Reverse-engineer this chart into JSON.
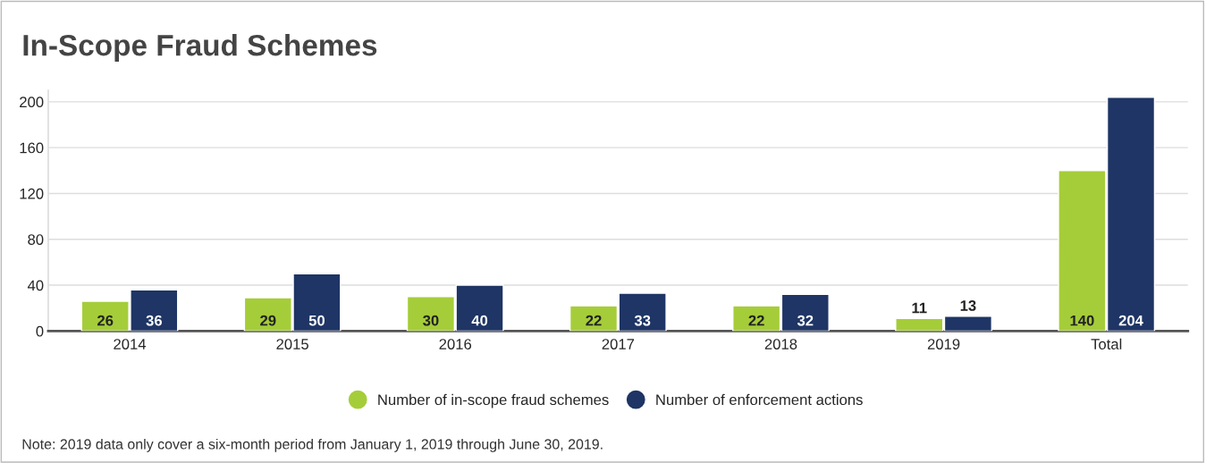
{
  "chart_data": {
    "type": "bar",
    "title": "In-Scope Fraud Schemes",
    "categories": [
      "2014",
      "2015",
      "2016",
      "2017",
      "2018",
      "2019",
      "Total"
    ],
    "series": [
      {
        "name": "Number of in-scope fraud schemes",
        "color": "#a5cd39",
        "values": [
          26,
          29,
          30,
          22,
          22,
          11,
          140
        ]
      },
      {
        "name": "Number of enforcement actions",
        "color": "#1e3565",
        "values": [
          36,
          50,
          40,
          33,
          32,
          13,
          204
        ]
      }
    ],
    "ylim": [
      0,
      210
    ],
    "yticks": [
      0,
      40,
      80,
      120,
      160,
      200
    ],
    "grid": "y",
    "legend": "bottom",
    "data_labels": true,
    "annotations": [
      "Note: 2019 data only cover a six-month period from January 1, 2019 through June 30, 2019."
    ]
  }
}
